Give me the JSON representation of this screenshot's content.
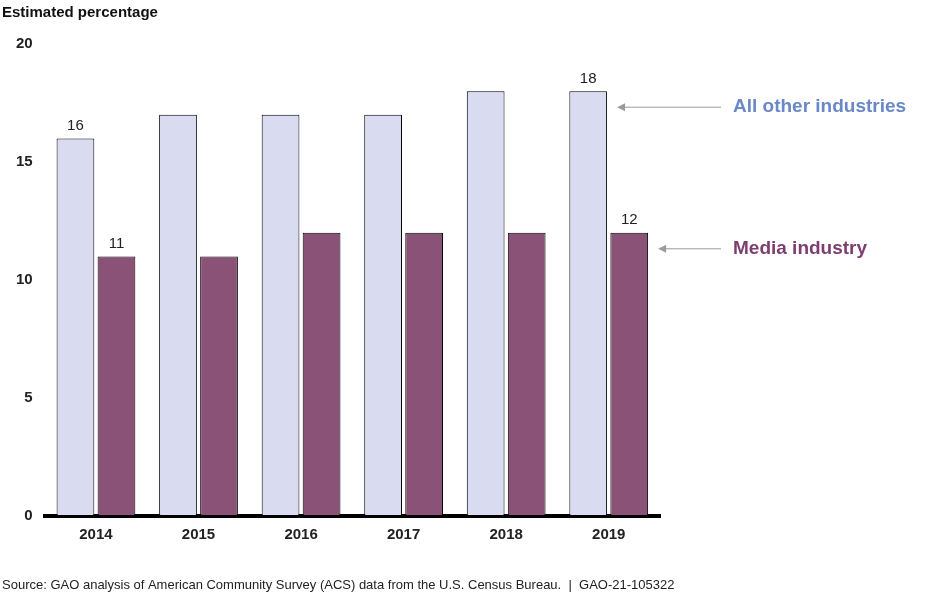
{
  "chart_data": {
    "type": "bar",
    "y_label": "Estimated percentage",
    "source": "Source: GAO analysis of American Community Survey (ACS) data from the U.S. Census Bureau.  |  GAO-21-105322",
    "categories": [
      "2014",
      "2015",
      "2016",
      "2017",
      "2018",
      "2019"
    ],
    "series": [
      {
        "name": "All other industries",
        "color": "#d9dcf0",
        "values": [
          16,
          17,
          17,
          17,
          18,
          18
        ],
        "value_labels": [
          "16",
          null,
          null,
          null,
          null,
          "18"
        ]
      },
      {
        "name": "Media industry",
        "color": "#8b5278",
        "values": [
          11,
          11,
          12,
          12,
          12,
          12
        ],
        "value_labels": [
          "11",
          null,
          null,
          null,
          null,
          "12"
        ]
      }
    ],
    "ylim": [
      0,
      20
    ],
    "yticks": [
      0,
      5,
      10,
      15,
      20
    ],
    "grid": false,
    "data_labels": true
  }
}
